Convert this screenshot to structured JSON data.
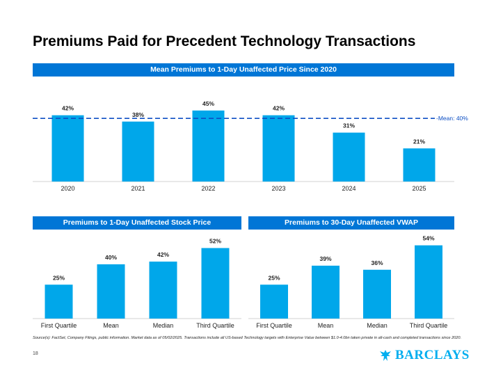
{
  "page": {
    "title": "Premiums Paid for Precedent Technology Transactions",
    "source_note": "Source(s): FactSet, Company Filings, public information. Market data as of 05/02/2025. Transactions include all US-based Technology targets with Enterprise Value between $1.0-4.0bn taken private in all-cash and completed transactions since 2020.",
    "page_number": "18",
    "logo_text": "BARCLAYS"
  },
  "colors": {
    "bar": "#00a7ea",
    "banner": "#0076d6",
    "mean_line": "#0d4fc4"
  },
  "chart_data": [
    {
      "type": "bar",
      "title": "Mean Premiums to 1-Day Unaffected Price Since 2020",
      "categories": [
        "2020",
        "2021",
        "2022",
        "2023",
        "2024",
        "2025"
      ],
      "values": [
        42,
        38,
        45,
        42,
        31,
        21
      ],
      "value_labels": [
        "42%",
        "38%",
        "45%",
        "42%",
        "31%",
        "21%"
      ],
      "reference_line": {
        "value": 40,
        "label": "Mean: 40%"
      },
      "ylim": [
        0,
        52
      ],
      "grid": false
    },
    {
      "type": "bar",
      "title": "Premiums to 1-Day Unaffected Stock Price",
      "categories": [
        "First Quartile",
        "Mean",
        "Median",
        "Third Quartile"
      ],
      "values": [
        25,
        40,
        42,
        52
      ],
      "value_labels": [
        "25%",
        "40%",
        "42%",
        "52%"
      ],
      "ylim": [
        0,
        60
      ],
      "grid": false
    },
    {
      "type": "bar",
      "title": "Premiums to 30-Day Unaffected VWAP",
      "categories": [
        "First Quartile",
        "Mean",
        "Median",
        "Third Quartile"
      ],
      "values": [
        25,
        39,
        36,
        54
      ],
      "value_labels": [
        "25%",
        "39%",
        "36%",
        "54%"
      ],
      "ylim": [
        0,
        60
      ],
      "grid": false
    }
  ]
}
